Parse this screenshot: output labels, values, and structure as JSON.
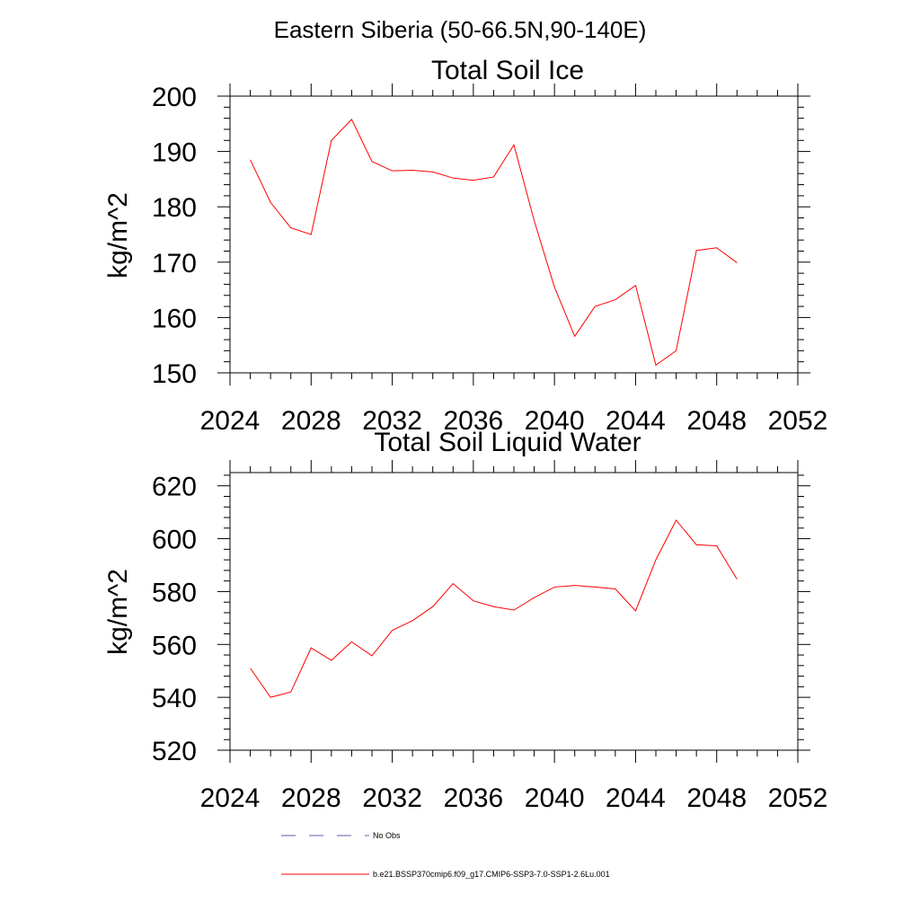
{
  "figure": {
    "title": "Eastern Siberia (50-66.5N,90-140E)"
  },
  "chart_data": [
    {
      "type": "line",
      "title": "Total Soil Ice",
      "xlabel": "",
      "ylabel": "kg/m^2",
      "xlim": [
        2024,
        2052
      ],
      "ylim": [
        150,
        200
      ],
      "xticks": [
        2024,
        2028,
        2032,
        2036,
        2040,
        2044,
        2048,
        2052
      ],
      "yticks": [
        150,
        160,
        170,
        180,
        190,
        200
      ],
      "x": [
        2025,
        2026,
        2027,
        2028,
        2029,
        2030,
        2031,
        2032,
        2033,
        2034,
        2035,
        2036,
        2037,
        2038,
        2039,
        2040,
        2041,
        2042,
        2043,
        2044,
        2045,
        2046,
        2047,
        2048,
        2049
      ],
      "series": [
        {
          "color": "#ff0000",
          "values": [
            188.5,
            180.8,
            176.2,
            175.0,
            192.0,
            195.8,
            188.2,
            186.5,
            186.6,
            186.3,
            185.2,
            184.8,
            185.4,
            191.2,
            177.5,
            165.5,
            156.6,
            162.0,
            163.2,
            165.8,
            151.4,
            154.0,
            172.1,
            172.6,
            169.9
          ]
        }
      ]
    },
    {
      "type": "line",
      "title": "Total Soil Liquid Water",
      "xlabel": "",
      "ylabel": "kg/m^2",
      "xlim": [
        2024,
        2052
      ],
      "ylim": [
        520,
        625
      ],
      "xticks": [
        2024,
        2028,
        2032,
        2036,
        2040,
        2044,
        2048,
        2052
      ],
      "yticks": [
        520,
        540,
        560,
        580,
        600,
        620
      ],
      "x": [
        2025,
        2026,
        2027,
        2028,
        2029,
        2030,
        2031,
        2032,
        2033,
        2034,
        2035,
        2036,
        2037,
        2038,
        2039,
        2040,
        2041,
        2042,
        2043,
        2044,
        2045,
        2046,
        2047,
        2048,
        2049
      ],
      "series": [
        {
          "color": "#ff0000",
          "values": [
            551.0,
            540.0,
            542.0,
            558.7,
            554.0,
            561.0,
            555.7,
            565.3,
            569.0,
            574.3,
            583.0,
            576.5,
            574.3,
            573.0,
            577.7,
            581.7,
            582.3,
            581.7,
            581.0,
            572.7,
            592.0,
            607.0,
            597.7,
            597.3,
            584.7
          ]
        }
      ]
    }
  ],
  "legend": {
    "items": [
      {
        "label": "No Obs",
        "color": "#5a5ab0",
        "style": "dashed"
      },
      {
        "label": "b.e21.BSSP370cmip6.f09_g17.CMIP6-SSP3-7.0-SSP1-2.6Lu.001",
        "color": "#ff0000",
        "style": "solid"
      }
    ]
  }
}
